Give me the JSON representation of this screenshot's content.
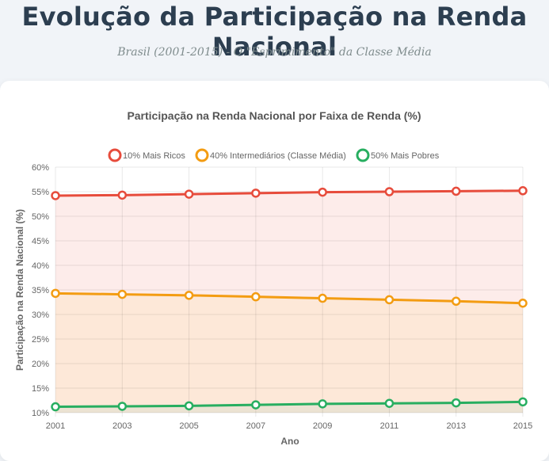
{
  "header": {
    "title": "Evolução da Participação na Renda Nacional",
    "subtitle": "Brasil (2001-2015) - O \"Esprimimento\" da Classe Média"
  },
  "chart_data": {
    "type": "line",
    "title": "Participação na Renda Nacional por Faixa de Renda (%)",
    "xlabel": "Ano",
    "ylabel": "Participação na Renda Nacional (%)",
    "x": [
      "2001",
      "2003",
      "2005",
      "2007",
      "2009",
      "2011",
      "2013",
      "2015"
    ],
    "ylim": [
      10,
      60
    ],
    "yticks": [
      10,
      15,
      20,
      25,
      30,
      35,
      40,
      45,
      50,
      55,
      60
    ],
    "y_tick_suffix": "%",
    "grid": true,
    "legend_position": "top",
    "fill": true,
    "series": [
      {
        "name": "10% Mais Ricos",
        "color": "#e74c3c",
        "fill": "#fdecea",
        "values": [
          54.2,
          54.3,
          54.5,
          54.7,
          54.9,
          55.0,
          55.1,
          55.2
        ]
      },
      {
        "name": "40% Intermediários (Classe Média)",
        "color": "#f39c12",
        "fill": "#fde8d8",
        "values": [
          34.3,
          34.1,
          33.9,
          33.6,
          33.3,
          33.0,
          32.7,
          32.3
        ]
      },
      {
        "name": "50% Mais Pobres",
        "color": "#27ae60",
        "fill": "#ece3d3",
        "values": [
          11.2,
          11.3,
          11.4,
          11.6,
          11.8,
          11.9,
          12.0,
          12.2
        ]
      }
    ]
  }
}
